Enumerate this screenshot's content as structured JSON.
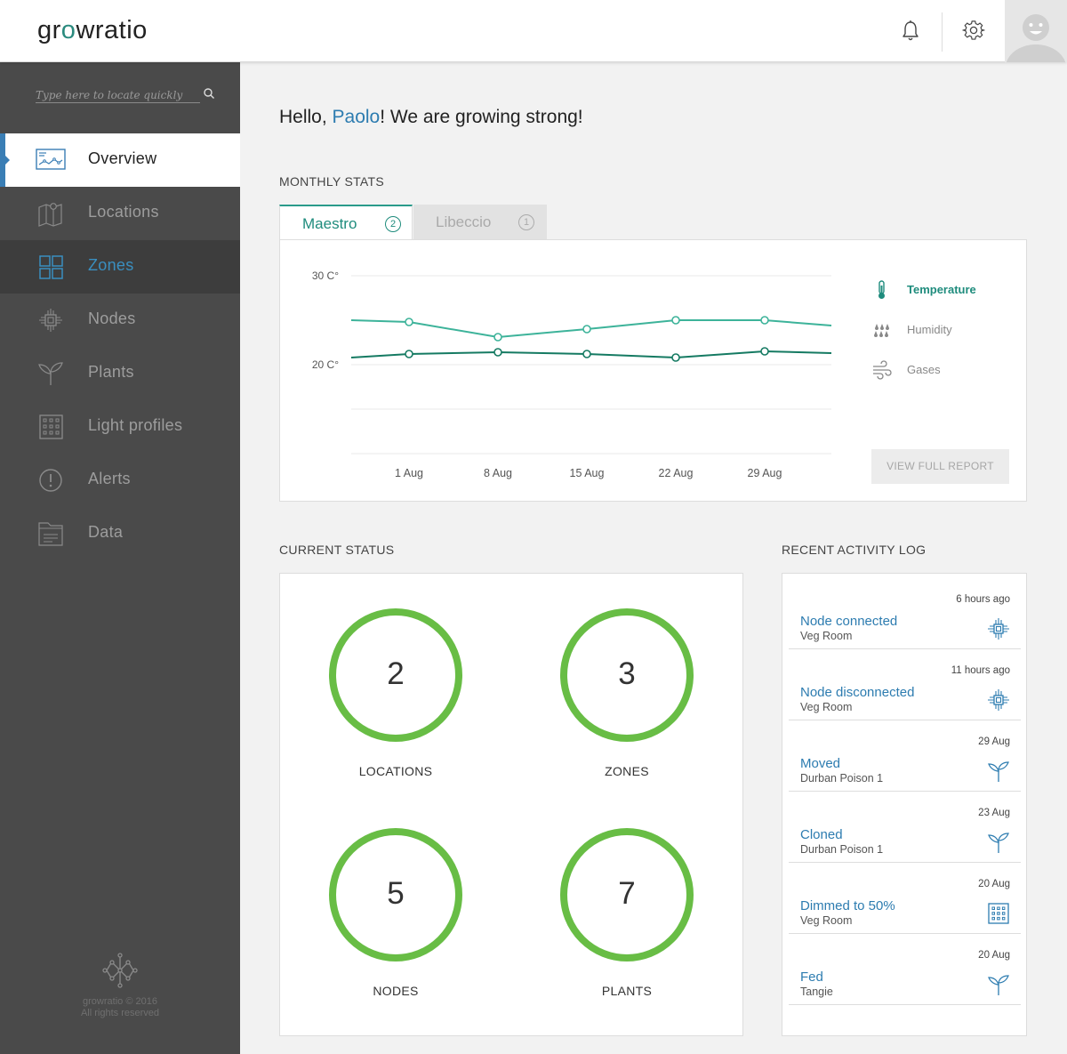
{
  "header": {
    "logo_pre": "gr",
    "logo_o": "o",
    "logo_post": "wratio"
  },
  "sidebar": {
    "search_placeholder": "Type here to locate quickly",
    "items": [
      {
        "label": "Overview",
        "icon": "chart-icon",
        "state": "active"
      },
      {
        "label": "Locations",
        "icon": "map-icon",
        "state": "normal"
      },
      {
        "label": "Zones",
        "icon": "grid-icon",
        "state": "highlight"
      },
      {
        "label": "Nodes",
        "icon": "chip-icon",
        "state": "normal"
      },
      {
        "label": "Plants",
        "icon": "sprout-icon",
        "state": "normal"
      },
      {
        "label": "Light profiles",
        "icon": "light-grid-icon",
        "state": "normal"
      },
      {
        "label": "Alerts",
        "icon": "alert-icon",
        "state": "normal"
      },
      {
        "label": "Data",
        "icon": "folder-icon",
        "state": "normal"
      }
    ],
    "footer_line1": "growratio © 2016",
    "footer_line2": "All rights reserved"
  },
  "main": {
    "greeting_pre": "Hello, ",
    "greeting_name": "Paolo",
    "greeting_post": "! We are growing strong!",
    "monthly_title": "MONTHLY STATS",
    "tabs": [
      {
        "label": "Maestro",
        "count": "2"
      },
      {
        "label": "Libeccio",
        "count": "1"
      }
    ],
    "legend": [
      {
        "label": "Temperature",
        "icon": "thermometer-icon",
        "color": "#1f8c7d"
      },
      {
        "label": "Humidity",
        "icon": "rain-icon",
        "color": "#888888"
      },
      {
        "label": "Gases",
        "icon": "wind-icon",
        "color": "#888888"
      }
    ],
    "report_button": "VIEW FULL REPORT",
    "status_title": "CURRENT STATUS",
    "status": [
      {
        "value": "2",
        "label": "LOCATIONS"
      },
      {
        "value": "3",
        "label": "ZONES"
      },
      {
        "value": "5",
        "label": "NODES"
      },
      {
        "value": "7",
        "label": "PLANTS"
      }
    ],
    "ring_color": "#68bd45",
    "log_title": "RECENT ACTIVITY LOG",
    "log": [
      {
        "time": "6 hours ago",
        "title": "Node connected",
        "sub": "Veg Room",
        "icon": "chip-icon"
      },
      {
        "time": "11 hours ago",
        "title": "Node disconnected",
        "sub": "Veg Room",
        "icon": "chip-icon"
      },
      {
        "time": "29 Aug",
        "title": "Moved",
        "sub": "Durban Poison 1",
        "icon": "sprout-icon"
      },
      {
        "time": "23 Aug",
        "title": "Cloned",
        "sub": "Durban Poison 1",
        "icon": "sprout-icon"
      },
      {
        "time": "20 Aug",
        "title": "Dimmed to 50%",
        "sub": "Veg Room",
        "icon": "light-grid-icon"
      },
      {
        "time": "20 Aug",
        "title": "Fed",
        "sub": "Tangie",
        "icon": "sprout-icon"
      }
    ]
  },
  "chart_data": {
    "type": "line",
    "title": "",
    "xlabel": "",
    "ylabel": "",
    "x": [
      "1 Aug",
      "8 Aug",
      "15 Aug",
      "22 Aug",
      "29 Aug"
    ],
    "y_ticks": [
      "30 C°",
      "20 C°"
    ],
    "ylim": [
      10,
      30
    ],
    "grid": true,
    "legend_position": "right",
    "series": [
      {
        "color": "#3db39a",
        "values": [
          24.8,
          23.1,
          24.0,
          25.0,
          25.0
        ]
      },
      {
        "color": "#157a62",
        "values": [
          21.2,
          21.4,
          21.2,
          20.8,
          21.5
        ]
      }
    ],
    "series_start": [
      25.0,
      20.8
    ],
    "series_end": [
      24.4,
      21.3
    ]
  }
}
